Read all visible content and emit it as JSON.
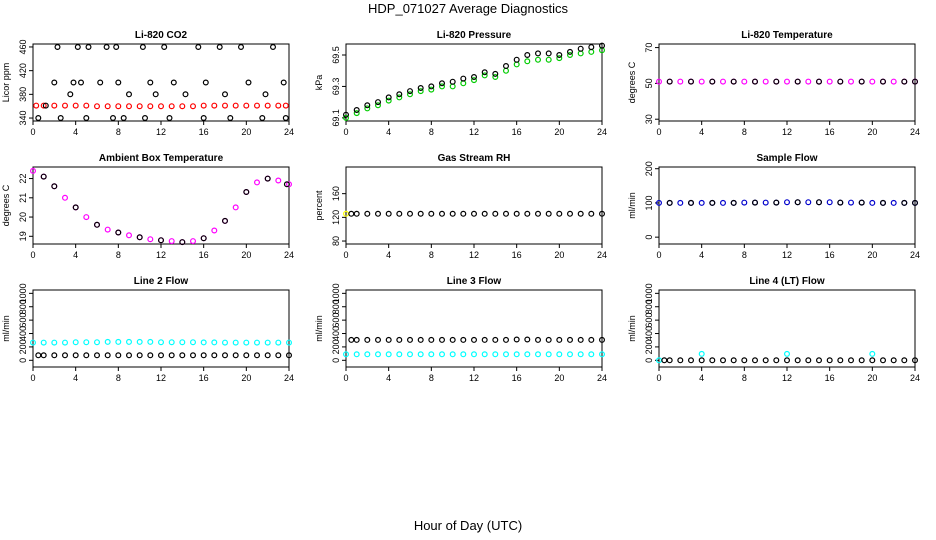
{
  "title": "HDP_071027  Average Diagnostics",
  "xlabel": "Hour of Day (UTC)",
  "chart_data": [
    {
      "type": "scatter",
      "title": "Li-820 CO2",
      "ylabel": "Licor ppm",
      "xlim": [
        0,
        24
      ],
      "ylim": [
        335,
        465
      ],
      "xticks": [
        0,
        4,
        8,
        12,
        16,
        20,
        24
      ],
      "yticks": [
        340,
        380,
        420,
        460
      ],
      "series": [
        {
          "color": "#ff0000",
          "x": [
            0.3,
            1,
            2,
            3,
            4,
            5,
            6,
            7,
            8,
            9,
            10,
            11,
            12,
            13,
            14,
            15,
            16,
            17,
            18,
            19,
            20,
            21,
            22,
            23,
            23.7
          ],
          "y": [
            361,
            361,
            361,
            361,
            361,
            361,
            360,
            360,
            360,
            360,
            360,
            360,
            360,
            360,
            360,
            360,
            361,
            361,
            361,
            361,
            361,
            361,
            361,
            361,
            361
          ]
        },
        {
          "color": "#000000",
          "x": [
            0.5,
            1.2,
            2,
            2.3,
            2.6,
            3.5,
            3.8,
            4.2,
            4.5,
            5,
            5.2,
            6.3,
            6.9,
            7.5,
            7.8,
            8,
            8.5,
            9,
            10.3,
            10.5,
            11,
            11.5,
            12.3,
            12.8,
            13.2,
            14.3,
            15.5,
            16,
            16.2,
            17.5,
            18,
            18.5,
            19.5,
            20.2,
            21.5,
            21.8,
            22.5,
            23.5,
            23.7
          ],
          "y": [
            340,
            361,
            400,
            460,
            340,
            380,
            400,
            460,
            400,
            340,
            460,
            400,
            460,
            340,
            460,
            400,
            340,
            380,
            460,
            340,
            400,
            380,
            460,
            340,
            400,
            380,
            460,
            340,
            400,
            460,
            380,
            340,
            460,
            400,
            340,
            380,
            460,
            400,
            340
          ]
        }
      ]
    },
    {
      "type": "scatter",
      "title": "Li-820 Pressure",
      "ylabel": "kPa",
      "xlim": [
        0,
        24
      ],
      "ylim": [
        69.08,
        69.57
      ],
      "xticks": [
        0,
        4,
        8,
        12,
        16,
        20,
        24
      ],
      "yticks": [
        69.1,
        69.3,
        69.5
      ],
      "series": [
        {
          "color": "#00cc00",
          "x": [
            0,
            1,
            2,
            3,
            4,
            5,
            6,
            7,
            8,
            9,
            10,
            11,
            12,
            13,
            14,
            15,
            16,
            17,
            18,
            19,
            20,
            21,
            22,
            23,
            24
          ],
          "y": [
            69.1,
            69.13,
            69.16,
            69.18,
            69.21,
            69.23,
            69.25,
            69.27,
            69.28,
            69.3,
            69.3,
            69.32,
            69.34,
            69.37,
            69.36,
            69.4,
            69.44,
            69.46,
            69.47,
            69.47,
            69.48,
            69.5,
            69.51,
            69.52,
            69.53
          ]
        },
        {
          "color": "#000000",
          "x": [
            0,
            1,
            2,
            3,
            4,
            5,
            6,
            7,
            8,
            9,
            10,
            11,
            12,
            13,
            14,
            15,
            16,
            17,
            18,
            19,
            20,
            21,
            22,
            23,
            24
          ],
          "y": [
            69.12,
            69.15,
            69.18,
            69.2,
            69.23,
            69.25,
            69.27,
            69.29,
            69.3,
            69.32,
            69.33,
            69.35,
            69.36,
            69.39,
            69.38,
            69.43,
            69.47,
            69.5,
            69.51,
            69.51,
            69.5,
            69.52,
            69.54,
            69.55,
            69.56
          ]
        }
      ]
    },
    {
      "type": "scatter",
      "title": "Li-820 Temperature",
      "ylabel": "degrees C",
      "xlim": [
        0,
        24
      ],
      "ylim": [
        29,
        72
      ],
      "xticks": [
        0,
        4,
        8,
        12,
        16,
        20,
        24
      ],
      "yticks": [
        30,
        50,
        70
      ],
      "series": [
        {
          "color": "#ff00ff",
          "x": [
            0,
            1,
            2,
            3,
            4,
            5,
            6,
            7,
            8,
            9,
            10,
            11,
            12,
            13,
            14,
            15,
            16,
            17,
            18,
            19,
            20,
            21,
            22,
            23,
            24
          ],
          "y": [
            51,
            51,
            51,
            51,
            51,
            51,
            51,
            51,
            51,
            51,
            51,
            51,
            51,
            51,
            51,
            51,
            51,
            51,
            51,
            51,
            51,
            51,
            51,
            51,
            51
          ]
        },
        {
          "color": "#000000",
          "x": [
            1,
            3,
            5,
            7,
            9,
            11,
            13,
            15,
            17,
            19,
            21,
            23,
            24
          ],
          "y": [
            51,
            51,
            51,
            51,
            51,
            51,
            51,
            51,
            51,
            51,
            51,
            51,
            51
          ]
        }
      ]
    },
    {
      "type": "scatter",
      "title": "Ambient Box Temperature",
      "ylabel": "degrees C",
      "xlim": [
        0,
        24
      ],
      "ylim": [
        18.6,
        22.6
      ],
      "xticks": [
        0,
        4,
        8,
        12,
        16,
        20,
        24
      ],
      "yticks": [
        19,
        20,
        21,
        22
      ],
      "series": [
        {
          "color": "#ff00ff",
          "x": [
            0,
            1,
            2,
            3,
            4,
            5,
            6,
            7,
            8,
            9,
            10,
            11,
            12,
            13,
            14,
            15,
            16,
            17,
            18,
            19,
            20,
            21,
            22,
            23,
            24
          ],
          "y": [
            22.4,
            22.1,
            21.6,
            21.0,
            20.5,
            20.0,
            19.6,
            19.35,
            19.2,
            19.05,
            18.95,
            18.85,
            18.8,
            18.75,
            18.7,
            18.75,
            18.9,
            19.3,
            19.8,
            20.5,
            21.3,
            21.8,
            22.0,
            21.9,
            21.7
          ]
        },
        {
          "color": "#000000",
          "x": [
            1,
            2,
            4,
            6,
            8,
            10,
            12,
            14,
            16,
            18,
            20,
            22,
            23.8
          ],
          "y": [
            22.1,
            21.6,
            20.5,
            19.6,
            19.2,
            18.95,
            18.8,
            18.7,
            18.9,
            19.8,
            21.3,
            22.0,
            21.7
          ]
        }
      ]
    },
    {
      "type": "scatter",
      "title": "Gas Stream RH",
      "ylabel": "percent",
      "xlim": [
        0,
        24
      ],
      "ylim": [
        75,
        205
      ],
      "xticks": [
        0,
        4,
        8,
        12,
        16,
        20,
        24
      ],
      "yticks": [
        80,
        120,
        160
      ],
      "series": [
        {
          "color": "#ffff00",
          "x": [
            0
          ],
          "y": [
            126
          ]
        },
        {
          "color": "#000000",
          "x": [
            0.5,
            1,
            2,
            3,
            4,
            5,
            6,
            7,
            8,
            9,
            10,
            11,
            12,
            13,
            14,
            15,
            16,
            17,
            18,
            19,
            20,
            21,
            22,
            23,
            24
          ],
          "y": [
            126,
            126,
            126,
            126,
            126,
            126,
            126,
            126,
            126,
            126,
            126,
            126,
            126,
            126,
            126,
            126,
            126,
            126,
            126,
            126,
            126,
            126,
            126,
            126,
            126
          ]
        }
      ]
    },
    {
      "type": "scatter",
      "title": "Sample Flow",
      "ylabel": "ml/min",
      "xlim": [
        0,
        24
      ],
      "ylim": [
        -20,
        205
      ],
      "xticks": [
        0,
        4,
        8,
        12,
        16,
        20,
        24
      ],
      "yticks": [
        0,
        100,
        200
      ],
      "series": [
        {
          "color": "#0000cc",
          "x": [
            0,
            1,
            2,
            3,
            4,
            5,
            6,
            7,
            8,
            9,
            10,
            11,
            12,
            13,
            14,
            15,
            16,
            17,
            18,
            19,
            20,
            21,
            22,
            23,
            24
          ],
          "y": [
            100,
            100,
            100,
            100,
            100,
            100,
            100,
            100,
            101,
            101,
            101,
            101,
            102,
            102,
            102,
            102,
            102,
            101,
            101,
            101,
            100,
            100,
            100,
            100,
            100
          ]
        },
        {
          "color": "#000000",
          "x": [
            1,
            3,
            5,
            7,
            9,
            11,
            13,
            15,
            17,
            19,
            21,
            23,
            24
          ],
          "y": [
            100,
            100,
            100,
            100,
            101,
            101,
            102,
            102,
            101,
            101,
            100,
            100,
            100
          ]
        }
      ]
    },
    {
      "type": "scatter",
      "title": "Line 2 Flow",
      "ylabel": "ml/min",
      "xlim": [
        0,
        24
      ],
      "ylim": [
        -100,
        1050
      ],
      "xticks": [
        0,
        4,
        8,
        12,
        16,
        20,
        24
      ],
      "yticks": [
        0,
        200,
        400,
        600,
        800,
        1000
      ],
      "series": [
        {
          "color": "#00ffff",
          "x": [
            0,
            1,
            2,
            3,
            4,
            5,
            6,
            7,
            8,
            9,
            10,
            11,
            12,
            13,
            14,
            15,
            16,
            17,
            18,
            19,
            20,
            21,
            22,
            23,
            24
          ],
          "y": [
            265,
            265,
            265,
            265,
            270,
            270,
            270,
            275,
            275,
            275,
            275,
            275,
            270,
            270,
            270,
            270,
            268,
            268,
            265,
            265,
            265,
            265,
            265,
            265,
            265
          ]
        },
        {
          "color": "#000000",
          "x": [
            0.5,
            1,
            2,
            3,
            4,
            5,
            6,
            7,
            8,
            9,
            10,
            11,
            12,
            13,
            14,
            15,
            16,
            17,
            18,
            19,
            20,
            21,
            22,
            23,
            24
          ],
          "y": [
            75,
            75,
            75,
            75,
            75,
            75,
            75,
            75,
            75,
            75,
            75,
            75,
            75,
            75,
            75,
            75,
            75,
            75,
            75,
            75,
            75,
            75,
            75,
            75,
            75
          ]
        }
      ]
    },
    {
      "type": "scatter",
      "title": "Line 3 Flow",
      "ylabel": "ml/min",
      "xlim": [
        0,
        24
      ],
      "ylim": [
        -100,
        1050
      ],
      "xticks": [
        0,
        4,
        8,
        12,
        16,
        20,
        24
      ],
      "yticks": [
        0,
        200,
        400,
        600,
        800,
        1000
      ],
      "series": [
        {
          "color": "#00ffff",
          "x": [
            0,
            1,
            2,
            3,
            4,
            5,
            6,
            7,
            8,
            9,
            10,
            11,
            12,
            13,
            14,
            15,
            16,
            17,
            18,
            19,
            20,
            21,
            22,
            23,
            24
          ],
          "y": [
            90,
            90,
            90,
            90,
            90,
            90,
            90,
            90,
            90,
            90,
            90,
            90,
            90,
            90,
            90,
            90,
            90,
            90,
            90,
            90,
            90,
            90,
            90,
            90,
            90
          ]
        },
        {
          "color": "#000000",
          "x": [
            0.5,
            1,
            2,
            3,
            4,
            5,
            6,
            7,
            8,
            9,
            10,
            11,
            12,
            13,
            14,
            15,
            16,
            17,
            18,
            19,
            20,
            21,
            22,
            23,
            24
          ],
          "y": [
            305,
            305,
            305,
            305,
            305,
            305,
            305,
            305,
            305,
            305,
            305,
            305,
            305,
            305,
            305,
            305,
            310,
            310,
            305,
            305,
            305,
            305,
            305,
            305,
            305
          ]
        }
      ]
    },
    {
      "type": "scatter",
      "title": "Line 4 (LT) Flow",
      "ylabel": "ml/min",
      "xlim": [
        0,
        24
      ],
      "ylim": [
        -100,
        1050
      ],
      "xticks": [
        0,
        4,
        8,
        12,
        16,
        20,
        24
      ],
      "yticks": [
        0,
        200,
        400,
        600,
        800,
        1000
      ],
      "series": [
        {
          "color": "#00ffff",
          "x": [
            0,
            4,
            12,
            20
          ],
          "y": [
            0,
            95,
            95,
            95
          ]
        },
        {
          "color": "#000000",
          "x": [
            0.5,
            1,
            2,
            3,
            4,
            5,
            6,
            7,
            8,
            9,
            10,
            11,
            12,
            13,
            14,
            15,
            16,
            17,
            18,
            19,
            20,
            21,
            22,
            23,
            24
          ],
          "y": [
            0,
            0,
            0,
            0,
            0,
            0,
            0,
            0,
            0,
            0,
            0,
            0,
            0,
            0,
            0,
            0,
            0,
            0,
            0,
            0,
            0,
            0,
            0,
            0,
            0
          ]
        }
      ]
    }
  ]
}
